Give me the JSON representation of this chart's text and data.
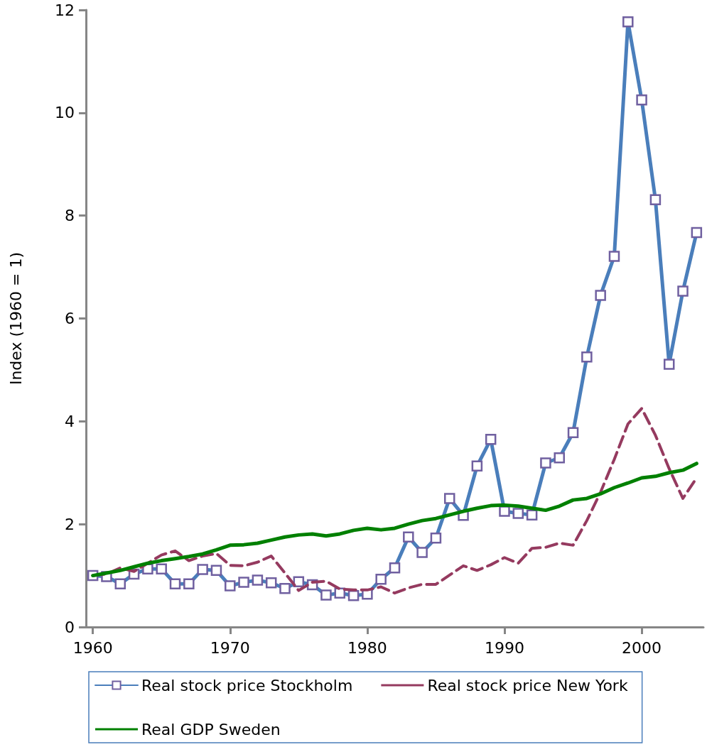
{
  "chart_data": {
    "type": "line",
    "ylabel": "Index (1960 = 1)",
    "x": [
      1960,
      1961,
      1962,
      1963,
      1964,
      1965,
      1966,
      1967,
      1968,
      1969,
      1970,
      1971,
      1972,
      1973,
      1974,
      1975,
      1976,
      1977,
      1978,
      1979,
      1980,
      1981,
      1982,
      1983,
      1984,
      1985,
      1986,
      1987,
      1988,
      1989,
      1990,
      1991,
      1992,
      1993,
      1994,
      1995,
      1996,
      1997,
      1998,
      1999,
      2000,
      2001,
      2002,
      2003,
      2004
    ],
    "xlim": [
      1959.5,
      2004.5
    ],
    "xticks": [
      1960,
      1970,
      1980,
      1990,
      2000
    ],
    "ylim": [
      0,
      12
    ],
    "yticks": [
      0,
      2,
      4,
      6,
      8,
      10,
      12
    ],
    "grid": false,
    "legend": "bottom",
    "series": [
      {
        "name": "Real stock price Stockholm",
        "color": "#4a7ebb",
        "marker": "square",
        "line_style": "solid",
        "values": [
          1.0,
          0.98,
          0.84,
          1.03,
          1.13,
          1.13,
          0.84,
          0.84,
          1.12,
          1.1,
          0.8,
          0.87,
          0.91,
          0.86,
          0.75,
          0.88,
          0.82,
          0.62,
          0.66,
          0.61,
          0.64,
          0.93,
          1.15,
          1.75,
          1.45,
          1.73,
          2.5,
          2.17,
          3.13,
          3.65,
          2.25,
          2.21,
          2.18,
          3.19,
          3.29,
          3.78,
          5.25,
          6.45,
          7.21,
          11.77,
          10.25,
          8.31,
          5.11,
          6.53,
          7.67
        ]
      },
      {
        "name": "Real stock price New York",
        "color": "#953a5f",
        "marker": "none",
        "line_style": "dashed",
        "values": [
          1.0,
          1.03,
          1.15,
          1.08,
          1.24,
          1.4,
          1.48,
          1.29,
          1.38,
          1.43,
          1.2,
          1.19,
          1.26,
          1.38,
          1.05,
          0.71,
          0.87,
          0.89,
          0.74,
          0.72,
          0.72,
          0.78,
          0.66,
          0.76,
          0.83,
          0.83,
          1.01,
          1.19,
          1.1,
          1.21,
          1.35,
          1.24,
          1.53,
          1.55,
          1.63,
          1.59,
          2.07,
          2.62,
          3.26,
          3.95,
          4.25,
          3.73,
          3.08,
          2.5,
          2.9
        ]
      },
      {
        "name": "Real GDP Sweden",
        "color": "#008000",
        "marker": "none",
        "line_style": "solid",
        "values": [
          1.0,
          1.05,
          1.1,
          1.17,
          1.24,
          1.29,
          1.33,
          1.37,
          1.42,
          1.5,
          1.59,
          1.6,
          1.63,
          1.69,
          1.75,
          1.79,
          1.81,
          1.77,
          1.81,
          1.88,
          1.92,
          1.89,
          1.92,
          2.0,
          2.07,
          2.11,
          2.18,
          2.25,
          2.31,
          2.36,
          2.37,
          2.35,
          2.31,
          2.27,
          2.35,
          2.47,
          2.5,
          2.59,
          2.71,
          2.8,
          2.9,
          2.93,
          3.0,
          3.05,
          3.18
        ]
      }
    ]
  }
}
